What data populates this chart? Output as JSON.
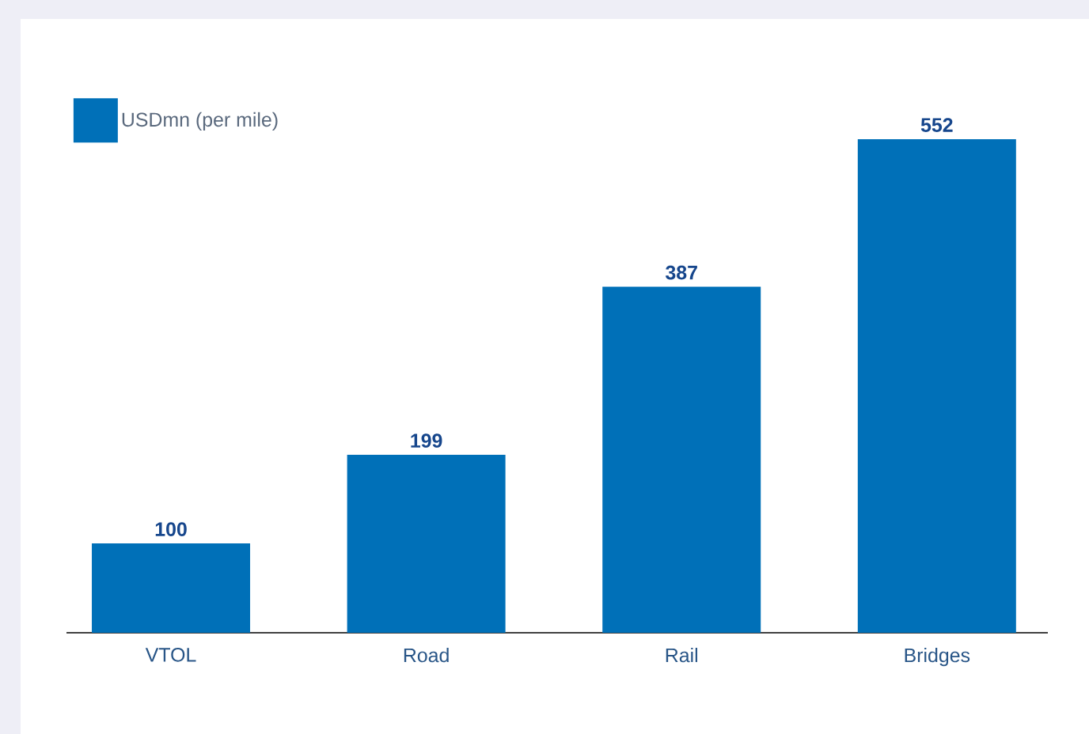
{
  "chart_data": {
    "type": "bar",
    "categories": [
      "VTOL",
      "Road",
      "Rail",
      "Bridges"
    ],
    "series": [
      {
        "name": "USDmn (per mile)",
        "color": "#0070b8",
        "values": [
          100,
          199,
          387,
          552
        ]
      }
    ],
    "data_labels": true,
    "legend": "top left"
  }
}
